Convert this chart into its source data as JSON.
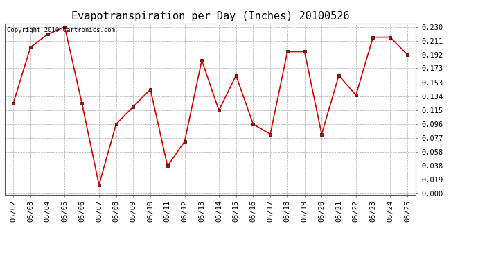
{
  "title": "Evapotranspiration per Day (Inches) 20100526",
  "copyright": "Copyright 2010 Cartronics.com",
  "x_labels": [
    "05/02",
    "05/03",
    "05/04",
    "05/05",
    "05/06",
    "05/07",
    "05/08",
    "05/09",
    "05/10",
    "05/11",
    "05/12",
    "05/13",
    "05/14",
    "05/15",
    "05/16",
    "05/17",
    "05/18",
    "05/19",
    "05/20",
    "05/21",
    "05/22",
    "05/23",
    "05/24",
    "05/25"
  ],
  "y_values": [
    0.125,
    0.202,
    0.22,
    0.23,
    0.125,
    0.012,
    0.096,
    0.12,
    0.144,
    0.038,
    0.072,
    0.184,
    0.115,
    0.163,
    0.096,
    0.082,
    0.196,
    0.196,
    0.082,
    0.163,
    0.136,
    0.216,
    0.216,
    0.192
  ],
  "line_color": "#cc0000",
  "marker": "s",
  "marker_size": 3,
  "marker_color": "#cc0000",
  "background_color": "#ffffff",
  "grid_color": "#aaaaaa",
  "y_ticks": [
    0.0,
    0.019,
    0.038,
    0.058,
    0.077,
    0.096,
    0.115,
    0.134,
    0.153,
    0.173,
    0.192,
    0.211,
    0.23
  ],
  "ylim": [
    0.0,
    0.23
  ],
  "title_fontsize": 11,
  "copyright_fontsize": 6.5,
  "tick_fontsize": 7.5
}
